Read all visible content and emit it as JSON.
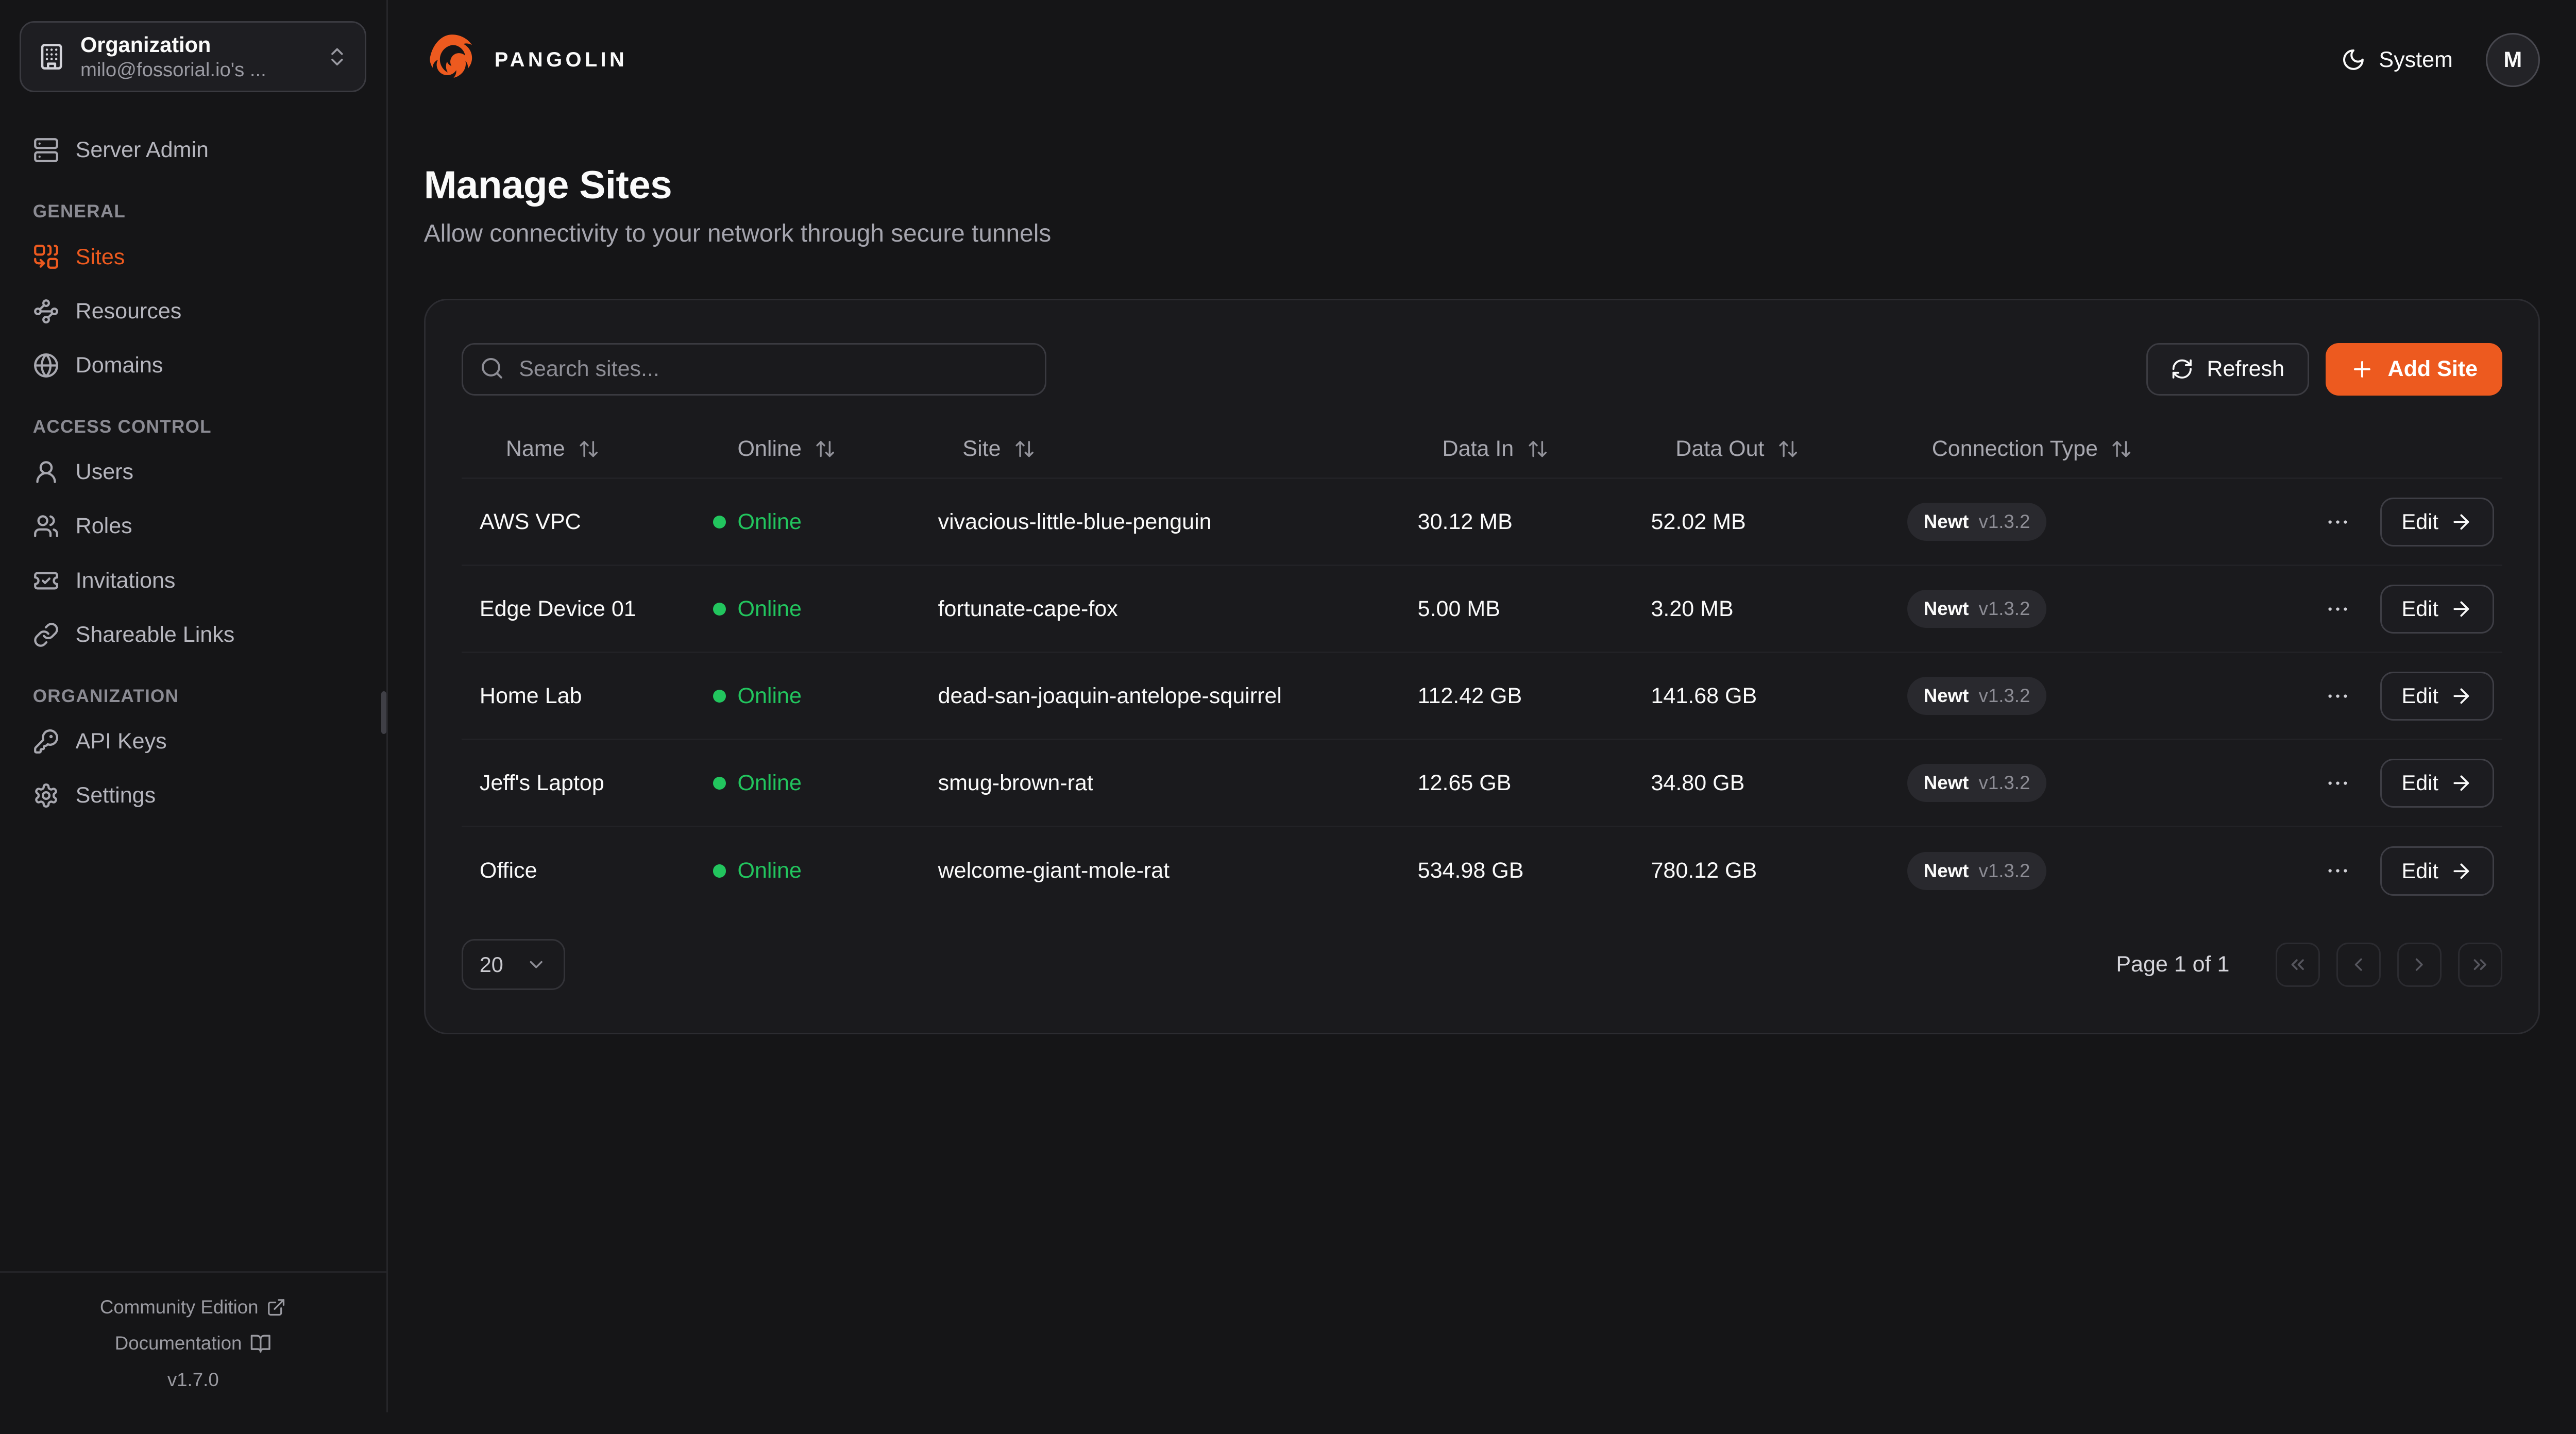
{
  "brand": {
    "name": "PANGOLIN"
  },
  "org_selector": {
    "label": "Organization",
    "value": "milo@fossorial.io's ...",
    "icon": "building-icon"
  },
  "sidebar": {
    "top_item": {
      "label": "Server Admin",
      "icon": "server-icon",
      "active": false
    },
    "sections": [
      {
        "title": "GENERAL",
        "items": [
          {
            "label": "Sites",
            "icon": "sites-icon",
            "active": true
          },
          {
            "label": "Resources",
            "icon": "waypoints-icon",
            "active": false
          },
          {
            "label": "Domains",
            "icon": "globe-icon",
            "active": false
          }
        ]
      },
      {
        "title": "ACCESS CONTROL",
        "items": [
          {
            "label": "Users",
            "icon": "user-icon",
            "active": false
          },
          {
            "label": "Roles",
            "icon": "users-icon",
            "active": false
          },
          {
            "label": "Invitations",
            "icon": "ticket-check-icon",
            "active": false
          },
          {
            "label": "Shareable Links",
            "icon": "link-icon",
            "active": false
          }
        ]
      },
      {
        "title": "ORGANIZATION",
        "items": [
          {
            "label": "API Keys",
            "icon": "key-icon",
            "active": false
          },
          {
            "label": "Settings",
            "icon": "gear-icon",
            "active": false
          }
        ]
      }
    ],
    "footer": {
      "community": "Community Edition",
      "community_icon": "external-link-icon",
      "documentation": "Documentation",
      "documentation_icon": "book-open-icon",
      "version": "v1.7.0"
    }
  },
  "topbar": {
    "theme_label": "System",
    "theme_icon": "moon-icon",
    "avatar_initial": "M"
  },
  "page": {
    "title": "Manage Sites",
    "subtitle": "Allow connectivity to your network through secure tunnels"
  },
  "toolbar": {
    "search_placeholder": "Search sites...",
    "refresh_label": "Refresh",
    "add_site_label": "Add Site"
  },
  "table": {
    "columns": [
      "Name",
      "Online",
      "Site",
      "Data In",
      "Data Out",
      "Connection Type"
    ],
    "rows": [
      {
        "name": "AWS VPC",
        "status": "Online",
        "site": "vivacious-little-blue-penguin",
        "data_in": "30.12 MB",
        "data_out": "52.02 MB",
        "connection": {
          "type": "Newt",
          "version": "v1.3.2"
        },
        "edit_label": "Edit"
      },
      {
        "name": "Edge Device 01",
        "status": "Online",
        "site": "fortunate-cape-fox",
        "data_in": "5.00 MB",
        "data_out": "3.20 MB",
        "connection": {
          "type": "Newt",
          "version": "v1.3.2"
        },
        "edit_label": "Edit"
      },
      {
        "name": "Home Lab",
        "status": "Online",
        "site": "dead-san-joaquin-antelope-squirrel",
        "data_in": "112.42 GB",
        "data_out": "141.68 GB",
        "connection": {
          "type": "Newt",
          "version": "v1.3.2"
        },
        "edit_label": "Edit"
      },
      {
        "name": "Jeff's Laptop",
        "status": "Online",
        "site": "smug-brown-rat",
        "data_in": "12.65 GB",
        "data_out": "34.80 GB",
        "connection": {
          "type": "Newt",
          "version": "v1.3.2"
        },
        "edit_label": "Edit"
      },
      {
        "name": "Office",
        "status": "Online",
        "site": "welcome-giant-mole-rat",
        "data_in": "534.98 GB",
        "data_out": "780.12 GB",
        "connection": {
          "type": "Newt",
          "version": "v1.3.2"
        },
        "edit_label": "Edit"
      }
    ]
  },
  "pagination": {
    "page_size": "20",
    "summary": "Page 1 of 1"
  },
  "colors": {
    "accent": "#ED5A1F",
    "online_green": "#22C55E",
    "page_bg": "#151517",
    "card_bg": "#1A1A1D"
  }
}
